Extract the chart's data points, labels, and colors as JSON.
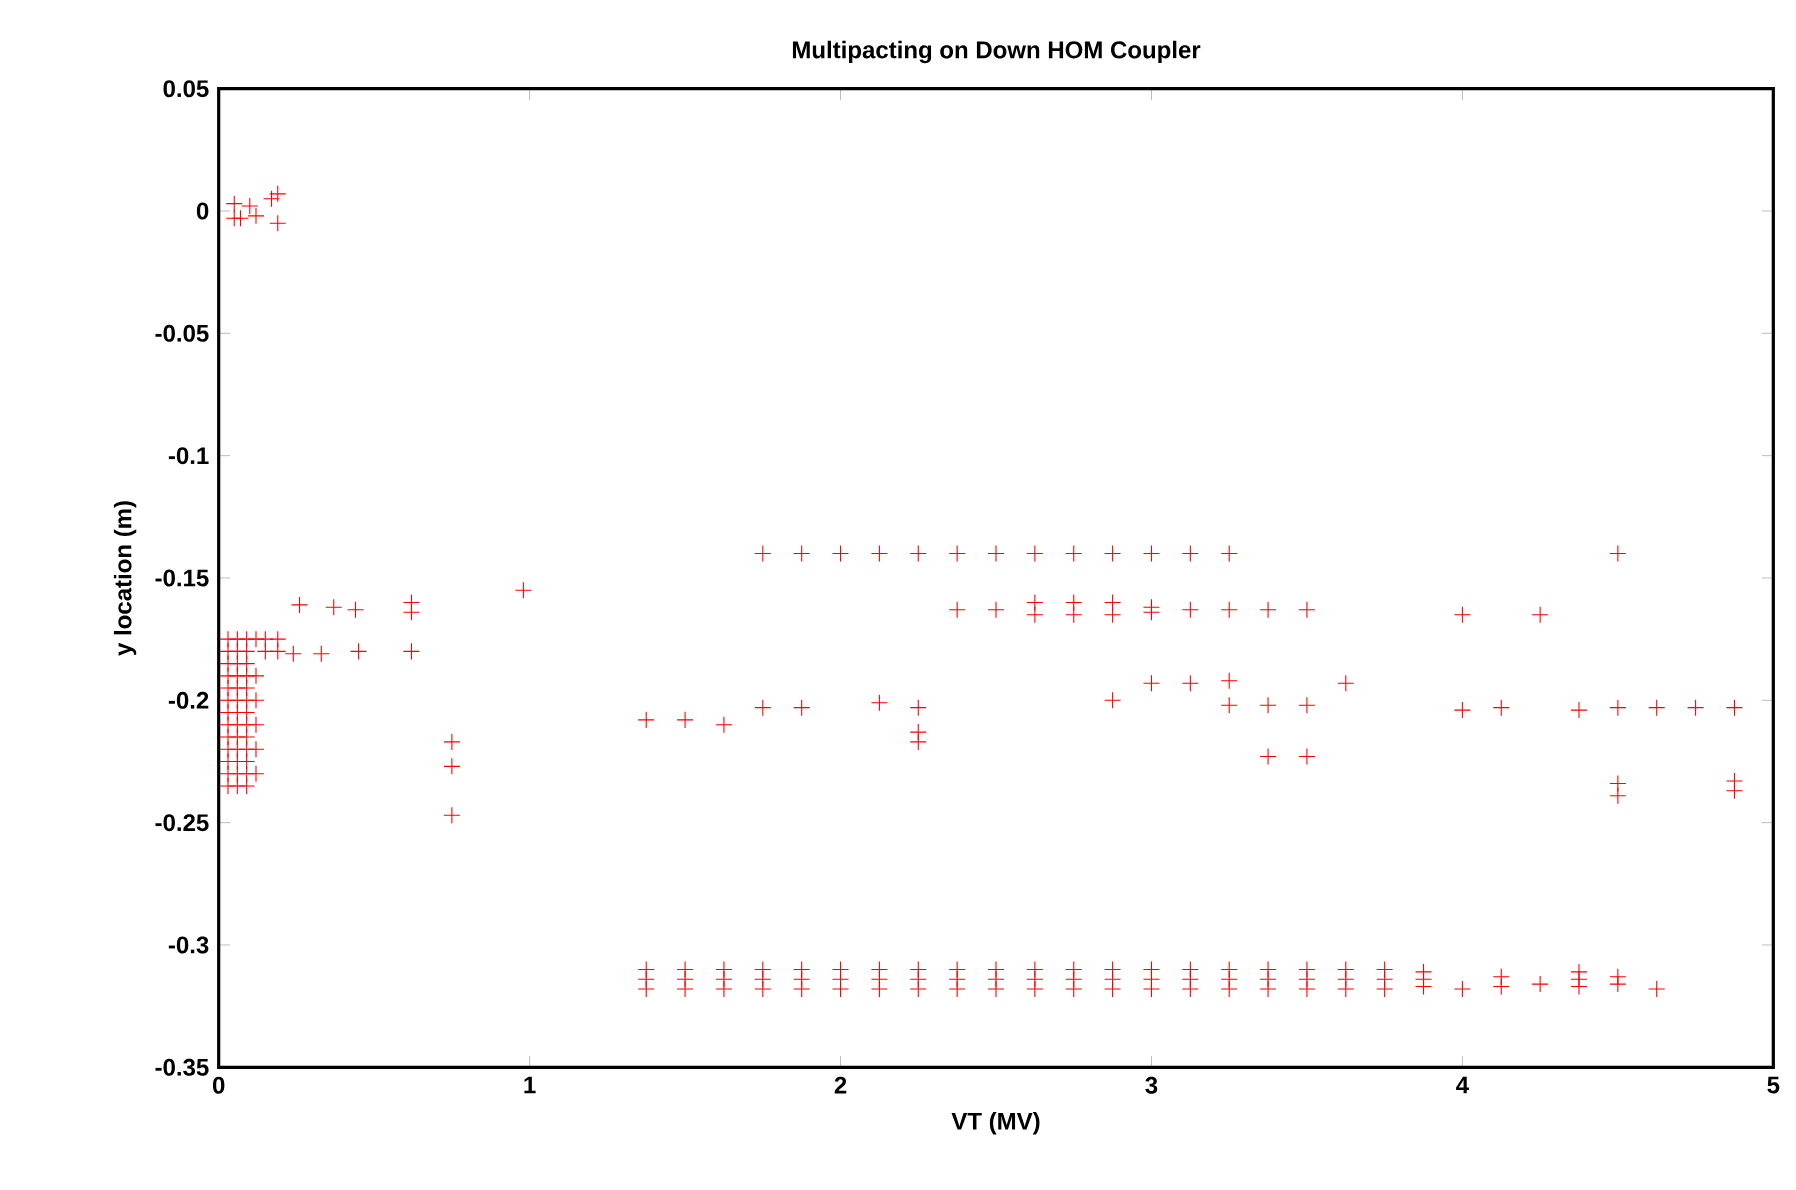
{
  "chart_data": {
    "type": "scatter",
    "title": "Multipacting on Down HOM Coupler",
    "xlabel": "VT (MV)",
    "ylabel": "y location (m)",
    "marker": "cross",
    "grid": false,
    "xlim": [
      0,
      5
    ],
    "xticks": [
      0,
      1,
      2,
      3,
      4,
      5
    ],
    "ylim": [
      -0.35,
      0.05
    ],
    "yticks": [
      -0.35,
      -0.3,
      -0.25,
      -0.2,
      -0.15,
      -0.1,
      -0.05,
      0,
      0.05
    ],
    "series": [
      {
        "color": "#ff0000",
        "x": [
          0.05,
          0.05,
          0.07,
          0.1,
          0.12,
          0.17,
          0.19,
          0.19
        ],
        "values": [
          0.003,
          -0.003,
          -0.003,
          0.002,
          -0.002,
          0.005,
          -0.005,
          0.007
        ]
      },
      {
        "color": "#ff0000",
        "x": [
          0.03,
          0.03,
          0.03,
          0.03,
          0.03,
          0.03,
          0.03,
          0.03,
          0.03,
          0.03,
          0.03,
          0.03,
          0.03,
          0.06,
          0.06,
          0.06,
          0.06,
          0.06,
          0.06,
          0.06,
          0.06,
          0.06,
          0.06,
          0.06,
          0.06,
          0.06,
          0.09,
          0.09,
          0.09,
          0.09,
          0.09,
          0.09,
          0.09,
          0.09,
          0.09,
          0.09,
          0.09,
          0.09,
          0.09,
          0.12,
          0.12,
          0.12,
          0.12,
          0.12,
          0.12,
          0.15,
          0.15,
          0.19,
          0.19
        ],
        "values": [
          -0.175,
          -0.18,
          -0.185,
          -0.19,
          -0.195,
          -0.2,
          -0.205,
          -0.21,
          -0.215,
          -0.22,
          -0.225,
          -0.23,
          -0.235,
          -0.175,
          -0.18,
          -0.185,
          -0.19,
          -0.195,
          -0.2,
          -0.205,
          -0.21,
          -0.215,
          -0.22,
          -0.225,
          -0.23,
          -0.235,
          -0.175,
          -0.18,
          -0.185,
          -0.19,
          -0.195,
          -0.2,
          -0.205,
          -0.21,
          -0.215,
          -0.22,
          -0.225,
          -0.23,
          -0.235,
          -0.175,
          -0.19,
          -0.2,
          -0.21,
          -0.22,
          -0.23,
          -0.175,
          -0.18,
          -0.175,
          -0.18
        ]
      },
      {
        "color": "#ff0000",
        "x": [
          0.24,
          0.26,
          0.33,
          0.37,
          0.44,
          0.45,
          0.62,
          0.62,
          0.62,
          0.75,
          0.75,
          0.75,
          0.98
        ],
        "values": [
          -0.181,
          -0.161,
          -0.181,
          -0.162,
          -0.163,
          -0.18,
          -0.16,
          -0.164,
          -0.18,
          -0.217,
          -0.227,
          -0.247,
          -0.155
        ]
      },
      {
        "color": "#ff0000",
        "x": [
          1.75,
          1.875,
          2,
          2.125,
          2.25,
          2.375,
          2.5,
          2.625,
          2.75,
          2.875,
          3,
          3.125,
          3.25,
          4.5
        ],
        "values": [
          -0.14,
          -0.14,
          -0.14,
          -0.14,
          -0.14,
          -0.14,
          -0.14,
          -0.14,
          -0.14,
          -0.14,
          -0.14,
          -0.14,
          -0.14,
          -0.14
        ]
      },
      {
        "color": "#ff0000",
        "x": [
          2.375,
          2.5,
          2.625,
          2.625,
          2.75,
          2.75,
          2.875,
          2.875,
          3,
          3,
          3.125,
          3.25,
          3.375,
          3.5,
          4,
          4.25
        ],
        "values": [
          -0.163,
          -0.163,
          -0.16,
          -0.165,
          -0.16,
          -0.165,
          -0.16,
          -0.165,
          -0.162,
          -0.164,
          -0.163,
          -0.163,
          -0.163,
          -0.163,
          -0.165,
          -0.165
        ]
      },
      {
        "color": "#ff0000",
        "x": [
          1.375,
          1.5,
          1.625,
          1.75,
          1.875,
          2.125,
          2.25,
          2.25,
          2.25,
          2.875,
          3,
          3.125,
          3.25,
          3.25,
          3.375,
          3.5,
          3.625,
          3.375,
          3.5,
          4,
          4.125,
          4.375,
          4.5,
          4.625,
          4.75,
          4.875,
          4.5,
          4.5,
          4.875,
          4.875
        ],
        "values": [
          -0.208,
          -0.208,
          -0.21,
          -0.203,
          -0.203,
          -0.201,
          -0.203,
          -0.213,
          -0.217,
          -0.2,
          -0.193,
          -0.193,
          -0.192,
          -0.202,
          -0.202,
          -0.202,
          -0.193,
          -0.223,
          -0.223,
          -0.204,
          -0.203,
          -0.204,
          -0.203,
          -0.203,
          -0.203,
          -0.203,
          -0.234,
          -0.239,
          -0.233,
          -0.237
        ]
      },
      {
        "color": "#ff0000",
        "x": [
          1.375,
          1.375,
          1.375,
          1.5,
          1.5,
          1.5,
          1.625,
          1.625,
          1.625,
          1.75,
          1.75,
          1.75,
          1.875,
          1.875,
          1.875,
          2,
          2,
          2,
          2.125,
          2.125,
          2.125,
          2.25,
          2.25,
          2.25,
          2.375,
          2.375,
          2.375,
          2.5,
          2.5,
          2.5,
          2.625,
          2.625,
          2.625,
          2.75,
          2.75,
          2.75,
          2.875,
          2.875,
          2.875,
          3,
          3,
          3,
          3.125,
          3.125,
          3.125,
          3.25,
          3.25,
          3.25,
          3.375,
          3.375,
          3.375,
          3.5,
          3.5,
          3.5,
          3.625,
          3.625,
          3.625,
          3.75,
          3.75,
          3.75,
          3.875,
          3.875,
          3.875,
          4,
          4.125,
          4.125,
          4.25,
          4.375,
          4.375,
          4.375,
          4.5,
          4.5,
          4.625
        ],
        "values": [
          -0.31,
          -0.314,
          -0.318,
          -0.31,
          -0.314,
          -0.318,
          -0.31,
          -0.314,
          -0.318,
          -0.31,
          -0.314,
          -0.318,
          -0.31,
          -0.314,
          -0.318,
          -0.31,
          -0.314,
          -0.318,
          -0.31,
          -0.314,
          -0.318,
          -0.31,
          -0.314,
          -0.318,
          -0.31,
          -0.314,
          -0.318,
          -0.31,
          -0.314,
          -0.318,
          -0.31,
          -0.314,
          -0.318,
          -0.31,
          -0.314,
          -0.318,
          -0.31,
          -0.314,
          -0.318,
          -0.31,
          -0.314,
          -0.318,
          -0.31,
          -0.314,
          -0.318,
          -0.31,
          -0.314,
          -0.318,
          -0.31,
          -0.314,
          -0.318,
          -0.31,
          -0.314,
          -0.318,
          -0.31,
          -0.314,
          -0.318,
          -0.31,
          -0.314,
          -0.318,
          -0.311,
          -0.314,
          -0.317,
          -0.318,
          -0.313,
          -0.317,
          -0.316,
          -0.311,
          -0.314,
          -0.317,
          -0.313,
          -0.316,
          -0.318
        ]
      }
    ]
  }
}
